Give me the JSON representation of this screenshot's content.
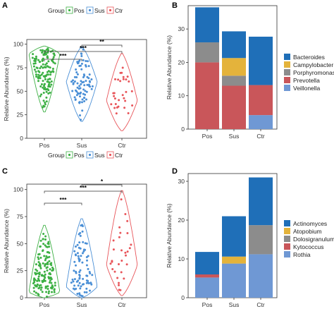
{
  "figure": {
    "panels": [
      "A",
      "B",
      "C",
      "D"
    ]
  },
  "chart_data": [
    {
      "id": "A",
      "type": "scatter",
      "subtype": "violin",
      "panel_label": "A",
      "legend_title": "Group",
      "legend_position": "top",
      "categories": [
        "Pos",
        "Sus",
        "Ctr"
      ],
      "group_legend": [
        "Pos",
        "Sus",
        "Ctr"
      ],
      "colors": {
        "Pos": "#3cb043",
        "Sus": "#4a8fd6",
        "Ctr": "#e8555a"
      },
      "ylabel": "Relative Abundance (%)",
      "ylim": [
        0,
        105
      ],
      "yticks": [
        0,
        25,
        50,
        75,
        100
      ],
      "groups": [
        {
          "name": "Pos",
          "min": 28,
          "max": 98,
          "mode": 90,
          "n": 140
        },
        {
          "name": "Sus",
          "min": 18,
          "max": 97,
          "mode": 60,
          "n": 85
        },
        {
          "name": "Ctr",
          "min": 8,
          "max": 90,
          "mode": 40,
          "n": 30
        }
      ],
      "significance": [
        {
          "from": "Pos",
          "to": "Sus",
          "label": "***"
        },
        {
          "from": "Pos",
          "to": "Ctr",
          "label": "***"
        },
        {
          "from": "Sus",
          "to": "Ctr",
          "label": "**"
        }
      ]
    },
    {
      "id": "B",
      "type": "bar",
      "subtype": "stacked",
      "panel_label": "B",
      "categories": [
        "Pos",
        "Sus",
        "Ctr"
      ],
      "ylabel": "Relative Abundance (%)",
      "ylim": [
        0,
        37
      ],
      "yticks": [
        0,
        10,
        20,
        30
      ],
      "legend_position": "right",
      "series": [
        {
          "name": "Veillonella",
          "color": "#6f98d4",
          "values": [
            0,
            0,
            4.2
          ]
        },
        {
          "name": "Prevotella",
          "color": "#c9565a",
          "values": [
            20,
            13,
            9
          ]
        },
        {
          "name": "Porphyromonas",
          "color": "#8c8c8c",
          "values": [
            6,
            3,
            0
          ]
        },
        {
          "name": "Campylobacter",
          "color": "#e4b33b",
          "values": [
            0,
            5.3,
            0
          ]
        },
        {
          "name": "Bacteroides",
          "color": "#1f6fb8",
          "values": [
            10.5,
            8,
            14.5
          ]
        }
      ],
      "legend_order": [
        "Bacteroides",
        "Campylobacter",
        "Porphyromonas",
        "Prevotella",
        "Veillonella"
      ]
    },
    {
      "id": "C",
      "type": "scatter",
      "subtype": "violin",
      "panel_label": "C",
      "legend_title": "Group",
      "legend_position": "top",
      "categories": [
        "Pos",
        "Sus",
        "Ctr"
      ],
      "group_legend": [
        "Pos",
        "Sus",
        "Ctr"
      ],
      "colors": {
        "Pos": "#3cb043",
        "Sus": "#4a8fd6",
        "Ctr": "#e8555a"
      },
      "ylabel": "Relative Abundance (%)",
      "ylim": [
        0,
        105
      ],
      "yticks": [
        0,
        25,
        50,
        75,
        100
      ],
      "groups": [
        {
          "name": "Pos",
          "min": 0,
          "max": 67,
          "mode": 5,
          "n": 140
        },
        {
          "name": "Sus",
          "min": 0,
          "max": 73,
          "mode": 10,
          "n": 85
        },
        {
          "name": "Ctr",
          "min": 2,
          "max": 99,
          "mode": 30,
          "n": 30
        }
      ],
      "significance": [
        {
          "from": "Pos",
          "to": "Sus",
          "label": "***"
        },
        {
          "from": "Pos",
          "to": "Ctr",
          "label": "***"
        },
        {
          "from": "Sus",
          "to": "Ctr",
          "label": "*"
        }
      ]
    },
    {
      "id": "D",
      "type": "bar",
      "subtype": "stacked",
      "panel_label": "D",
      "categories": [
        "Pos",
        "Sus",
        "Ctr"
      ],
      "ylabel": "Relative Abundance (%)",
      "ylim": [
        0,
        32
      ],
      "yticks": [
        0,
        10,
        20,
        30
      ],
      "legend_position": "right",
      "series": [
        {
          "name": "Rothia",
          "color": "#6f98d4",
          "values": [
            5.2,
            8.8,
            11.2
          ]
        },
        {
          "name": "Kytococcus",
          "color": "#c9565a",
          "values": [
            0.8,
            0,
            0
          ]
        },
        {
          "name": "Dolosigranulum",
          "color": "#8c8c8c",
          "values": [
            0,
            0,
            7.5
          ]
        },
        {
          "name": "Atopobium",
          "color": "#e4b33b",
          "values": [
            0,
            1.8,
            0
          ]
        },
        {
          "name": "Actinomyces",
          "color": "#1f6fb8",
          "values": [
            5.8,
            10.4,
            12.3
          ]
        }
      ],
      "legend_order": [
        "Actinomyces",
        "Atopobium",
        "Dolosigranulum",
        "Kytococcus",
        "Rothia"
      ]
    }
  ]
}
